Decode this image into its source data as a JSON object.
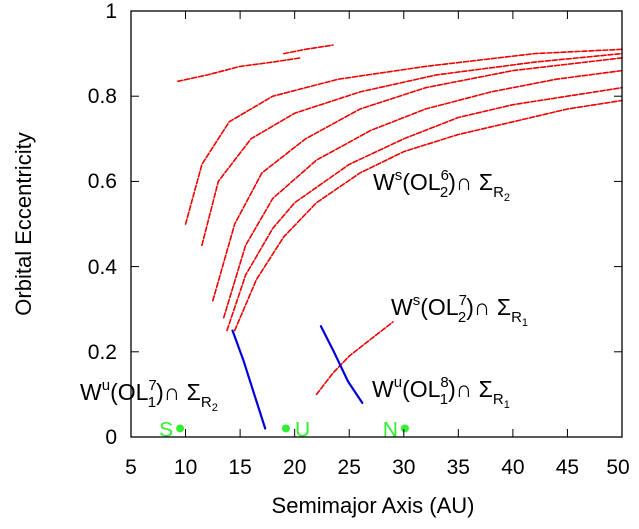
{
  "chart_data": {
    "type": "scatter",
    "xlabel": "Semimajor Axis (AU)",
    "ylabel": "Orbital Eccentricity",
    "xlim": [
      5,
      50
    ],
    "ylim": [
      0,
      1
    ],
    "xticks": [
      "5",
      "10",
      "15",
      "20",
      "25",
      "30",
      "35",
      "40",
      "45",
      "50"
    ],
    "yticks": [
      "0",
      "0.2",
      "0.4",
      "0.6",
      "0.8",
      "1"
    ],
    "grid": false,
    "legend": "none",
    "colors": {
      "red": "#ee0000",
      "blue": "#0000dd",
      "green": "#33ee33",
      "axis": "#000000"
    },
    "curves": [
      {
        "color": "red",
        "points": [
          [
            13.8,
            0.25
          ],
          [
            15.5,
            0.38
          ],
          [
            18,
            0.49
          ],
          [
            20,
            0.55
          ],
          [
            25,
            0.64
          ],
          [
            30,
            0.7
          ],
          [
            35,
            0.75
          ],
          [
            40,
            0.78
          ],
          [
            45,
            0.8
          ],
          [
            50,
            0.82
          ]
        ]
      },
      {
        "color": "red",
        "points": [
          [
            14.5,
            0.25
          ],
          [
            16.5,
            0.37
          ],
          [
            19,
            0.47
          ],
          [
            22,
            0.55
          ],
          [
            26,
            0.62
          ],
          [
            30,
            0.67
          ],
          [
            35,
            0.71
          ],
          [
            40,
            0.74
          ],
          [
            45,
            0.77
          ],
          [
            50,
            0.79
          ]
        ]
      },
      {
        "color": "red",
        "points": [
          [
            13.5,
            0.28
          ],
          [
            15.5,
            0.45
          ],
          [
            18,
            0.56
          ],
          [
            22,
            0.65
          ],
          [
            27,
            0.72
          ],
          [
            32,
            0.77
          ],
          [
            38,
            0.81
          ],
          [
            44,
            0.84
          ],
          [
            50,
            0.86
          ]
        ]
      },
      {
        "color": "red",
        "points": [
          [
            12.5,
            0.32
          ],
          [
            14.5,
            0.5
          ],
          [
            17,
            0.62
          ],
          [
            21,
            0.7
          ],
          [
            26,
            0.77
          ],
          [
            32,
            0.82
          ],
          [
            40,
            0.86
          ],
          [
            50,
            0.89
          ]
        ]
      },
      {
        "color": "red",
        "points": [
          [
            11.5,
            0.45
          ],
          [
            13,
            0.6
          ],
          [
            16,
            0.7
          ],
          [
            20,
            0.76
          ],
          [
            26,
            0.81
          ],
          [
            33,
            0.85
          ],
          [
            42,
            0.88
          ],
          [
            50,
            0.9
          ]
        ]
      },
      {
        "color": "red",
        "points": [
          [
            10,
            0.5
          ],
          [
            11.5,
            0.64
          ],
          [
            14,
            0.74
          ],
          [
            18,
            0.8
          ],
          [
            24,
            0.84
          ],
          [
            32,
            0.87
          ],
          [
            42,
            0.9
          ],
          [
            50,
            0.91
          ]
        ]
      },
      {
        "color": "red",
        "points": [
          [
            9.3,
            0.835
          ],
          [
            12,
            0.85
          ],
          [
            15,
            0.87
          ],
          [
            18,
            0.88
          ],
          [
            20.5,
            0.89
          ]
        ]
      },
      {
        "color": "red",
        "points": [
          [
            19,
            0.9
          ],
          [
            21,
            0.91
          ],
          [
            23.5,
            0.92
          ]
        ]
      },
      {
        "color": "red",
        "points": [
          [
            22,
            0.1
          ],
          [
            23.5,
            0.15
          ],
          [
            25,
            0.19
          ],
          [
            27,
            0.23
          ],
          [
            29,
            0.27
          ]
        ]
      },
      {
        "color": "blue",
        "points": [
          [
            14.3,
            0.25
          ],
          [
            15.3,
            0.18
          ],
          [
            16.3,
            0.1
          ],
          [
            17.3,
            0.02
          ]
        ]
      },
      {
        "color": "blue",
        "points": [
          [
            22.4,
            0.26
          ],
          [
            23.6,
            0.2
          ],
          [
            24.9,
            0.13
          ],
          [
            26.2,
            0.08
          ]
        ]
      }
    ],
    "planets": [
      {
        "label": "S",
        "a": 9.5,
        "e": 0.02
      },
      {
        "label": "U",
        "a": 19.2,
        "e": 0.02
      },
      {
        "label": "N",
        "a": 30.1,
        "e": 0.02
      }
    ],
    "annotations": [
      {
        "base": "W",
        "sup": "s",
        "arg": "(OL",
        "argsup": "6",
        "argsub": "2",
        "tail": ")∩ Σ",
        "sub": "R",
        "subsub": "2"
      },
      {
        "base": "W",
        "sup": "s",
        "arg": "(OL",
        "argsup": "7",
        "argsub": "2",
        "tail": ")∩ Σ",
        "sub": "R",
        "subsub": "1"
      },
      {
        "base": "W",
        "sup": "u",
        "arg": "(OL",
        "argsup": "7",
        "argsub": "1",
        "tail": ")∩ Σ",
        "sub": "R",
        "subsub": "2"
      },
      {
        "base": "W",
        "sup": "u",
        "arg": "(OL",
        "argsup": "8",
        "argsub": "1",
        "tail": ")∩ Σ",
        "sub": "R",
        "subsub": "1"
      }
    ]
  }
}
